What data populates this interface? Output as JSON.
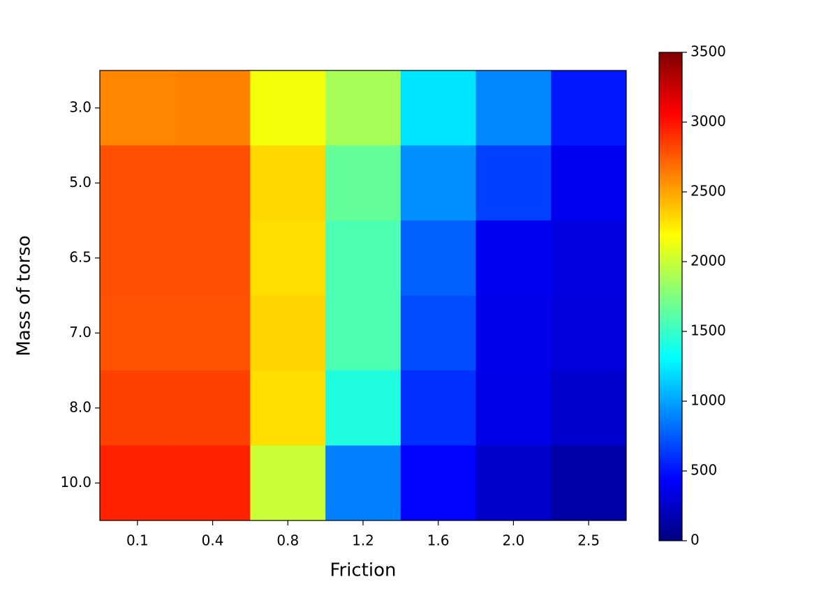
{
  "chart_data": {
    "type": "heatmap",
    "x_label": "Friction",
    "y_label": "Mass of torso",
    "x_categories": [
      "0.1",
      "0.4",
      "0.8",
      "1.2",
      "1.6",
      "2.0",
      "2.5"
    ],
    "y_categories": [
      "3.0",
      "5.0",
      "6.5",
      "7.0",
      "8.0",
      "10.0"
    ],
    "values": [
      [
        2600,
        2620,
        2150,
        1890,
        1225,
        900,
        520
      ],
      [
        2790,
        2790,
        2320,
        1660,
        930,
        656,
        385
      ],
      [
        2790,
        2790,
        2300,
        1575,
        770,
        390,
        330
      ],
      [
        2780,
        2780,
        2330,
        1575,
        700,
        370,
        320
      ],
      [
        2840,
        2840,
        2300,
        1420,
        600,
        350,
        270
      ],
      [
        2950,
        2950,
        2000,
        875,
        440,
        260,
        140
      ]
    ],
    "colormap": "jet",
    "clim": [
      0,
      3500
    ],
    "cticks": [
      0,
      500,
      1000,
      1500,
      2000,
      2500,
      3000,
      3500
    ]
  }
}
